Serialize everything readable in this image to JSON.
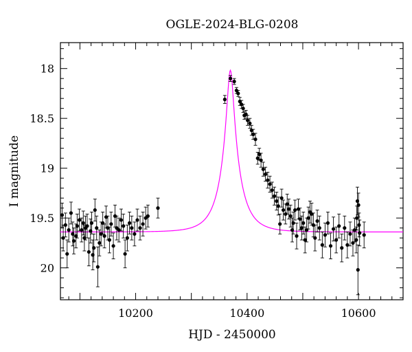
{
  "chart_data": {
    "type": "scatter",
    "title": "OGLE-2024-BLG-0208",
    "xlabel": "HJD - 2450000",
    "ylabel": "I magnitude",
    "xlim": [
      10065,
      10680
    ],
    "ylim": [
      20.32,
      17.74
    ],
    "y_inverted": true,
    "grid": false,
    "x_ticks": [
      10200,
      10400,
      10600
    ],
    "y_ticks": [
      18,
      18.5,
      19,
      19.5,
      20
    ],
    "x_tick_labels": [
      "10200",
      "10400",
      "10600"
    ],
    "y_tick_labels": [
      "18",
      "18.5",
      "19",
      "19.5",
      "20"
    ],
    "model_color": "#ff00ff",
    "point_color": "#000000",
    "model": {
      "t0": 10370,
      "tE": 35,
      "u0": 0.165,
      "baseline": 19.64,
      "fs": 0.675
    },
    "series": [
      {
        "name": "",
        "points": [
          {
            "x": 10068,
            "y": 19.47,
            "err": 0.12
          },
          {
            "x": 10070,
            "y": 19.7,
            "err": 0.13
          },
          {
            "x": 10074,
            "y": 19.57,
            "err": 0.12
          },
          {
            "x": 10077,
            "y": 19.86,
            "err": 0.14
          },
          {
            "x": 10080,
            "y": 19.62,
            "err": 0.12
          },
          {
            "x": 10084,
            "y": 19.45,
            "err": 0.11
          },
          {
            "x": 10087,
            "y": 19.66,
            "err": 0.12
          },
          {
            "x": 10089,
            "y": 19.73,
            "err": 0.13
          },
          {
            "x": 10093,
            "y": 19.68,
            "err": 0.12
          },
          {
            "x": 10095,
            "y": 19.58,
            "err": 0.12
          },
          {
            "x": 10099,
            "y": 19.52,
            "err": 0.11
          },
          {
            "x": 10103,
            "y": 19.62,
            "err": 0.12
          },
          {
            "x": 10106,
            "y": 19.55,
            "err": 0.12
          },
          {
            "x": 10108,
            "y": 19.7,
            "err": 0.13
          },
          {
            "x": 10110,
            "y": 19.6,
            "err": 0.12
          },
          {
            "x": 10113,
            "y": 19.58,
            "err": 0.12
          },
          {
            "x": 10116,
            "y": 19.84,
            "err": 0.14
          },
          {
            "x": 10119,
            "y": 19.63,
            "err": 0.12
          },
          {
            "x": 10121,
            "y": 19.55,
            "err": 0.11
          },
          {
            "x": 10123,
            "y": 19.87,
            "err": 0.15
          },
          {
            "x": 10125,
            "y": 19.8,
            "err": 0.14
          },
          {
            "x": 10127,
            "y": 19.42,
            "err": 0.11
          },
          {
            "x": 10130,
            "y": 19.6,
            "err": 0.12
          },
          {
            "x": 10132,
            "y": 19.99,
            "err": 0.2
          },
          {
            "x": 10135,
            "y": 19.75,
            "err": 0.13
          },
          {
            "x": 10138,
            "y": 19.66,
            "err": 0.12
          },
          {
            "x": 10141,
            "y": 19.55,
            "err": 0.11
          },
          {
            "x": 10144,
            "y": 19.68,
            "err": 0.12
          },
          {
            "x": 10147,
            "y": 19.49,
            "err": 0.11
          },
          {
            "x": 10150,
            "y": 19.6,
            "err": 0.12
          },
          {
            "x": 10153,
            "y": 19.72,
            "err": 0.13
          },
          {
            "x": 10156,
            "y": 19.56,
            "err": 0.12
          },
          {
            "x": 10160,
            "y": 19.78,
            "err": 0.13
          },
          {
            "x": 10163,
            "y": 19.48,
            "err": 0.11
          },
          {
            "x": 10166,
            "y": 19.6,
            "err": 0.12
          },
          {
            "x": 10170,
            "y": 19.62,
            "err": 0.12
          },
          {
            "x": 10174,
            "y": 19.52,
            "err": 0.11
          },
          {
            "x": 10178,
            "y": 19.58,
            "err": 0.12
          },
          {
            "x": 10181,
            "y": 19.86,
            "err": 0.14
          },
          {
            "x": 10185,
            "y": 19.7,
            "err": 0.13
          },
          {
            "x": 10189,
            "y": 19.55,
            "err": 0.11
          },
          {
            "x": 10193,
            "y": 19.6,
            "err": 0.12
          },
          {
            "x": 10198,
            "y": 19.66,
            "err": 0.12
          },
          {
            "x": 10203,
            "y": 19.52,
            "err": 0.11
          },
          {
            "x": 10208,
            "y": 19.6,
            "err": 0.12
          },
          {
            "x": 10213,
            "y": 19.56,
            "err": 0.12
          },
          {
            "x": 10218,
            "y": 19.5,
            "err": 0.11
          },
          {
            "x": 10222,
            "y": 19.48,
            "err": 0.11
          },
          {
            "x": 10240,
            "y": 19.4,
            "err": 0.1
          },
          {
            "x": 10360,
            "y": 18.31,
            "err": 0.04
          },
          {
            "x": 10370,
            "y": 18.1,
            "err": 0.03
          },
          {
            "x": 10377,
            "y": 18.13,
            "err": 0.03
          },
          {
            "x": 10381,
            "y": 18.22,
            "err": 0.03
          },
          {
            "x": 10384,
            "y": 18.25,
            "err": 0.03
          },
          {
            "x": 10387,
            "y": 18.33,
            "err": 0.04
          },
          {
            "x": 10390,
            "y": 18.36,
            "err": 0.04
          },
          {
            "x": 10393,
            "y": 18.4,
            "err": 0.04
          },
          {
            "x": 10395,
            "y": 18.47,
            "err": 0.04
          },
          {
            "x": 10398,
            "y": 18.46,
            "err": 0.04
          },
          {
            "x": 10401,
            "y": 18.52,
            "err": 0.05
          },
          {
            "x": 10405,
            "y": 18.55,
            "err": 0.05
          },
          {
            "x": 10408,
            "y": 18.62,
            "err": 0.05
          },
          {
            "x": 10411,
            "y": 18.66,
            "err": 0.05
          },
          {
            "x": 10415,
            "y": 18.71,
            "err": 0.06
          },
          {
            "x": 10419,
            "y": 18.9,
            "err": 0.06
          },
          {
            "x": 10422,
            "y": 18.86,
            "err": 0.06
          },
          {
            "x": 10425,
            "y": 18.92,
            "err": 0.07
          },
          {
            "x": 10429,
            "y": 19.01,
            "err": 0.07
          },
          {
            "x": 10433,
            "y": 19.06,
            "err": 0.07
          },
          {
            "x": 10437,
            "y": 19.12,
            "err": 0.08
          },
          {
            "x": 10441,
            "y": 19.16,
            "err": 0.08
          },
          {
            "x": 10445,
            "y": 19.22,
            "err": 0.08
          },
          {
            "x": 10449,
            "y": 19.28,
            "err": 0.09
          },
          {
            "x": 10453,
            "y": 19.33,
            "err": 0.09
          },
          {
            "x": 10456,
            "y": 19.38,
            "err": 0.09
          },
          {
            "x": 10459,
            "y": 19.56,
            "err": 0.1
          },
          {
            "x": 10462,
            "y": 19.3,
            "err": 0.09
          },
          {
            "x": 10465,
            "y": 19.42,
            "err": 0.1
          },
          {
            "x": 10469,
            "y": 19.46,
            "err": 0.1
          },
          {
            "x": 10472,
            "y": 19.36,
            "err": 0.1
          },
          {
            "x": 10475,
            "y": 19.41,
            "err": 0.1
          },
          {
            "x": 10478,
            "y": 19.48,
            "err": 0.11
          },
          {
            "x": 10481,
            "y": 19.62,
            "err": 0.12
          },
          {
            "x": 10483,
            "y": 19.55,
            "err": 0.11
          },
          {
            "x": 10486,
            "y": 19.42,
            "err": 0.1
          },
          {
            "x": 10489,
            "y": 19.68,
            "err": 0.13
          },
          {
            "x": 10492,
            "y": 19.41,
            "err": 0.1
          },
          {
            "x": 10495,
            "y": 19.51,
            "err": 0.11
          },
          {
            "x": 10498,
            "y": 19.6,
            "err": 0.12
          },
          {
            "x": 10501,
            "y": 19.55,
            "err": 0.11
          },
          {
            "x": 10504,
            "y": 19.72,
            "err": 0.13
          },
          {
            "x": 10507,
            "y": 19.62,
            "err": 0.12
          },
          {
            "x": 10510,
            "y": 19.5,
            "err": 0.11
          },
          {
            "x": 10513,
            "y": 19.44,
            "err": 0.11
          },
          {
            "x": 10516,
            "y": 19.46,
            "err": 0.11
          },
          {
            "x": 10519,
            "y": 19.57,
            "err": 0.12
          },
          {
            "x": 10522,
            "y": 19.7,
            "err": 0.13
          },
          {
            "x": 10526,
            "y": 19.53,
            "err": 0.11
          },
          {
            "x": 10530,
            "y": 19.6,
            "err": 0.12
          },
          {
            "x": 10535,
            "y": 19.77,
            "err": 0.13
          },
          {
            "x": 10540,
            "y": 19.67,
            "err": 0.12
          },
          {
            "x": 10545,
            "y": 19.55,
            "err": 0.11
          },
          {
            "x": 10550,
            "y": 19.78,
            "err": 0.13
          },
          {
            "x": 10555,
            "y": 19.61,
            "err": 0.12
          },
          {
            "x": 10560,
            "y": 19.72,
            "err": 0.13
          },
          {
            "x": 10565,
            "y": 19.58,
            "err": 0.12
          },
          {
            "x": 10570,
            "y": 19.8,
            "err": 0.14
          },
          {
            "x": 10575,
            "y": 19.6,
            "err": 0.12
          },
          {
            "x": 10580,
            "y": 19.77,
            "err": 0.13
          },
          {
            "x": 10585,
            "y": 19.66,
            "err": 0.12
          },
          {
            "x": 10590,
            "y": 19.75,
            "err": 0.13
          },
          {
            "x": 10593,
            "y": 19.62,
            "err": 0.12
          },
          {
            "x": 10596,
            "y": 19.72,
            "err": 0.13
          },
          {
            "x": 10597,
            "y": 19.5,
            "err": 0.12
          },
          {
            "x": 10598,
            "y": 19.33,
            "err": 0.14
          },
          {
            "x": 10599,
            "y": 20.02,
            "err": 0.25
          },
          {
            "x": 10600,
            "y": 19.37,
            "err": 0.12
          },
          {
            "x": 10601,
            "y": 19.57,
            "err": 0.12
          },
          {
            "x": 10602,
            "y": 19.65,
            "err": 0.13
          },
          {
            "x": 10610,
            "y": 19.67,
            "err": 0.13
          }
        ]
      }
    ]
  }
}
